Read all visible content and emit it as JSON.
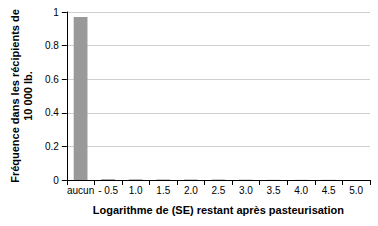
{
  "chart_data": {
    "type": "bar",
    "x_label": "Logarithme de (SE) restant après pasteurisation",
    "y_label": "Fréquence dans les récipients de\n10 000 lb.",
    "categories": [
      "aucun",
      "- 0.5",
      "1.0",
      "1.5",
      "2.0",
      "2.5",
      "3.0",
      "3.5",
      "4.0",
      "4.5",
      "5.0"
    ],
    "values": [
      0.97,
      0.005,
      0.004,
      0.003,
      0.003,
      0.003,
      0.002,
      0.001,
      0.001,
      0.001,
      0.0
    ],
    "color": "#999999",
    "ylim": [
      0,
      1
    ],
    "yticks": [
      0,
      0.2,
      0.4,
      0.6,
      0.8,
      1
    ],
    "grid": true
  }
}
